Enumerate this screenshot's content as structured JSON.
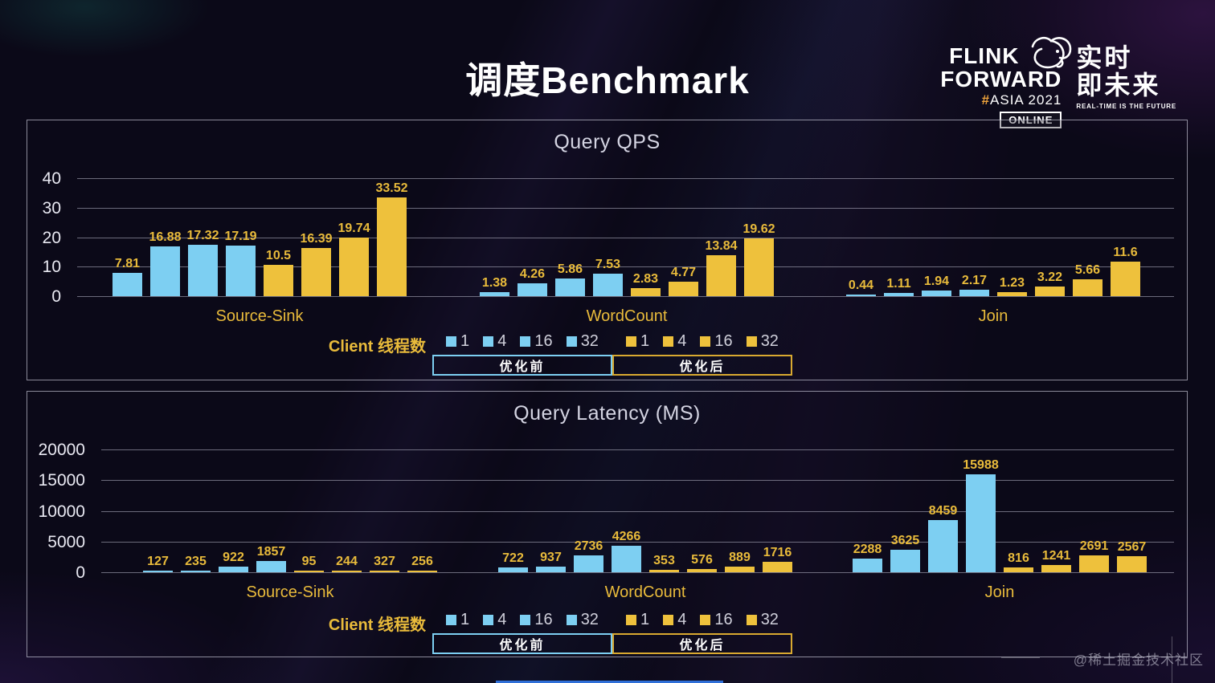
{
  "slide": {
    "title": "调度Benchmark"
  },
  "logo": {
    "flink": "FLINK",
    "forward": "FORWARD",
    "hash": "#",
    "asia": "ASIA 2021",
    "online": "ONLINE",
    "cn_top": "实时",
    "cn_bottom": "即未来",
    "tagline": "REAL-TIME IS THE FUTURE"
  },
  "legend": {
    "label": "Client 线程数",
    "thread_counts": [
      "1",
      "4",
      "16",
      "32"
    ],
    "before_label": "优化前",
    "after_label": "优化后"
  },
  "colors": {
    "before_bar": "#7dcff2",
    "after_bar": "#eec13c",
    "value_label_gold": "#e9bb3b",
    "axis_text": "#e9e9f2",
    "before_box_border": "#7dcff2",
    "after_box_border": "#d9a930"
  },
  "watermark": {
    "text": "@稀土掘金技术社区"
  },
  "chart_data": [
    {
      "type": "bar",
      "title": "Query QPS",
      "categories": [
        "Source-Sink",
        "WordCount",
        "Join"
      ],
      "groups": [
        {
          "name": "优化前",
          "color": "#7dcff2",
          "series": [
            {
              "threads": "1",
              "values": [
                7.81,
                1.38,
                0.44
              ]
            },
            {
              "threads": "4",
              "values": [
                16.88,
                4.26,
                1.11
              ]
            },
            {
              "threads": "16",
              "values": [
                17.32,
                5.86,
                1.94
              ]
            },
            {
              "threads": "32",
              "values": [
                17.19,
                7.53,
                2.17
              ]
            }
          ]
        },
        {
          "name": "优化后",
          "color": "#eec13c",
          "series": [
            {
              "threads": "1",
              "values": [
                10.5,
                2.83,
                1.23
              ]
            },
            {
              "threads": "4",
              "values": [
                16.39,
                4.77,
                3.22
              ]
            },
            {
              "threads": "16",
              "values": [
                19.74,
                13.84,
                5.66
              ]
            },
            {
              "threads": "32",
              "values": [
                33.52,
                19.62,
                11.6
              ]
            }
          ]
        }
      ],
      "ylim": [
        0,
        40
      ],
      "yticks": [
        0,
        10,
        20,
        30,
        40
      ],
      "grid": true,
      "legend_position": "bottom"
    },
    {
      "type": "bar",
      "title": "Query Latency (MS)",
      "categories": [
        "Source-Sink",
        "WordCount",
        "Join"
      ],
      "groups": [
        {
          "name": "优化前",
          "color": "#7dcff2",
          "series": [
            {
              "threads": "1",
              "values": [
                127,
                722,
                2288
              ]
            },
            {
              "threads": "4",
              "values": [
                235,
                937,
                3625
              ]
            },
            {
              "threads": "16",
              "values": [
                922,
                2736,
                8459
              ]
            },
            {
              "threads": "32",
              "values": [
                1857,
                4266,
                15988
              ]
            }
          ]
        },
        {
          "name": "优化后",
          "color": "#eec13c",
          "series": [
            {
              "threads": "1",
              "values": [
                95,
                353,
                816
              ]
            },
            {
              "threads": "4",
              "values": [
                244,
                576,
                1241
              ]
            },
            {
              "threads": "16",
              "values": [
                327,
                889,
                2691
              ]
            },
            {
              "threads": "32",
              "values": [
                256,
                1716,
                2567
              ]
            }
          ]
        }
      ],
      "ylim": [
        0,
        20000
      ],
      "yticks": [
        0,
        5000,
        10000,
        15000,
        20000
      ],
      "grid": true,
      "legend_position": "bottom"
    }
  ]
}
